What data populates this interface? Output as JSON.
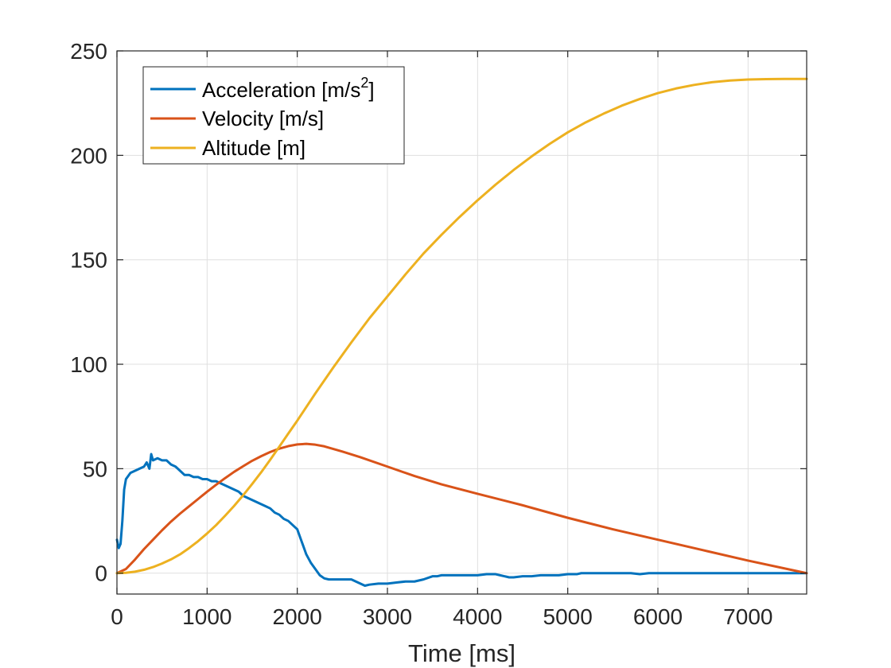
{
  "chart_data": {
    "type": "line",
    "title": "",
    "xlabel": "Time [ms]",
    "ylabel": "",
    "xlim": [
      0,
      7650
    ],
    "ylim": [
      -10,
      250
    ],
    "xticks": [
      0,
      1000,
      2000,
      3000,
      4000,
      5000,
      6000,
      7000
    ],
    "yticks": [
      0,
      50,
      100,
      150,
      200,
      250
    ],
    "grid": true,
    "legend_position": "top-left",
    "series": [
      {
        "name": "Acceleration [m/s²]",
        "legend_main": "Acceleration [m/s",
        "legend_sup": "2",
        "legend_tail": "]",
        "color": "#0072BD",
        "x": [
          0,
          20,
          40,
          60,
          80,
          100,
          150,
          200,
          250,
          300,
          330,
          360,
          380,
          400,
          450,
          500,
          550,
          600,
          650,
          700,
          750,
          800,
          850,
          900,
          950,
          1000,
          1050,
          1100,
          1150,
          1200,
          1250,
          1300,
          1350,
          1400,
          1450,
          1500,
          1550,
          1600,
          1650,
          1700,
          1750,
          1800,
          1850,
          1900,
          1950,
          2000,
          2050,
          2100,
          2150,
          2200,
          2250,
          2300,
          2350,
          2400,
          2500,
          2600,
          2700,
          2750,
          2800,
          2900,
          3000,
          3100,
          3200,
          3300,
          3400,
          3500,
          3550,
          3600,
          3700,
          3800,
          3900,
          4000,
          4100,
          4200,
          4250,
          4300,
          4350,
          4400,
          4500,
          4600,
          4700,
          4800,
          4900,
          5000,
          5100,
          5150,
          5200,
          5300,
          5400,
          5500,
          5600,
          5700,
          5800,
          5900,
          6000,
          6200,
          6400,
          6600,
          6800,
          7000,
          7200,
          7400,
          7650
        ],
        "y": [
          16,
          12,
          14,
          25,
          40,
          45,
          48,
          49,
          50,
          51,
          53,
          50,
          57,
          54,
          55,
          54,
          54,
          52,
          51,
          49,
          47,
          47,
          46,
          46,
          45,
          45,
          44,
          44,
          43,
          42,
          41,
          40,
          39,
          37,
          36,
          35,
          34,
          33,
          32,
          31,
          29,
          28,
          26,
          25,
          23,
          21,
          15,
          9,
          5,
          2,
          -1,
          -2.5,
          -3,
          -3,
          -3,
          -3,
          -5,
          -6,
          -5.5,
          -5,
          -5,
          -4.5,
          -4,
          -4,
          -3,
          -1.5,
          -1.5,
          -1,
          -1,
          -1,
          -1,
          -1,
          -0.5,
          -0.5,
          -1,
          -1.5,
          -2,
          -2,
          -1.5,
          -1.5,
          -1,
          -1,
          -1,
          -0.5,
          -0.5,
          0,
          0,
          0,
          0,
          0,
          0,
          0,
          -0.5,
          0,
          0,
          0,
          0,
          0,
          0,
          0,
          0,
          0,
          0
        ]
      },
      {
        "name": "Velocity [m/s]",
        "color": "#D95319",
        "x": [
          0,
          100,
          200,
          300,
          400,
          500,
          600,
          700,
          800,
          900,
          1000,
          1100,
          1200,
          1300,
          1400,
          1500,
          1600,
          1700,
          1800,
          1900,
          2000,
          2100,
          2200,
          2300,
          2500,
          2700,
          3000,
          3300,
          3600,
          4000,
          4500,
          5000,
          5500,
          6000,
          6500,
          7000,
          7650
        ],
        "y": [
          0,
          2,
          6.5,
          11.5,
          16,
          20.5,
          24.7,
          28.5,
          32,
          35.5,
          39,
          42.3,
          45.5,
          48.5,
          51.2,
          53.8,
          56,
          58,
          59.6,
          60.8,
          61.6,
          61.9,
          61.5,
          60.7,
          58.2,
          55.5,
          51,
          46.5,
          42.5,
          38,
          32.5,
          26.5,
          21,
          16,
          11,
          6,
          0
        ]
      },
      {
        "name": "Altitude [m]",
        "color": "#EDB120",
        "x": [
          0,
          100,
          200,
          300,
          400,
          500,
          600,
          700,
          800,
          900,
          1000,
          1100,
          1200,
          1300,
          1400,
          1500,
          1600,
          1700,
          1800,
          1900,
          2000,
          2200,
          2400,
          2600,
          2800,
          3000,
          3200,
          3400,
          3600,
          3800,
          4000,
          4200,
          4400,
          4600,
          4800,
          5000,
          5200,
          5400,
          5600,
          5800,
          6000,
          6200,
          6400,
          6600,
          6800,
          7000,
          7200,
          7400,
          7650
        ],
        "y": [
          0,
          0.2,
          0.7,
          1.6,
          2.9,
          4.6,
          6.6,
          9,
          12,
          15.3,
          19,
          23,
          27.5,
          32.2,
          37.3,
          42.7,
          48.3,
          54.3,
          60.5,
          66.8,
          73,
          86,
          98.5,
          110.5,
          122,
          132.5,
          143,
          153,
          162,
          170.5,
          178.5,
          186,
          193,
          199.5,
          205.5,
          211,
          215.8,
          220,
          223.8,
          227,
          229.8,
          232,
          233.7,
          235,
          235.8,
          236.3,
          236.5,
          236.6,
          236.6
        ]
      }
    ]
  }
}
